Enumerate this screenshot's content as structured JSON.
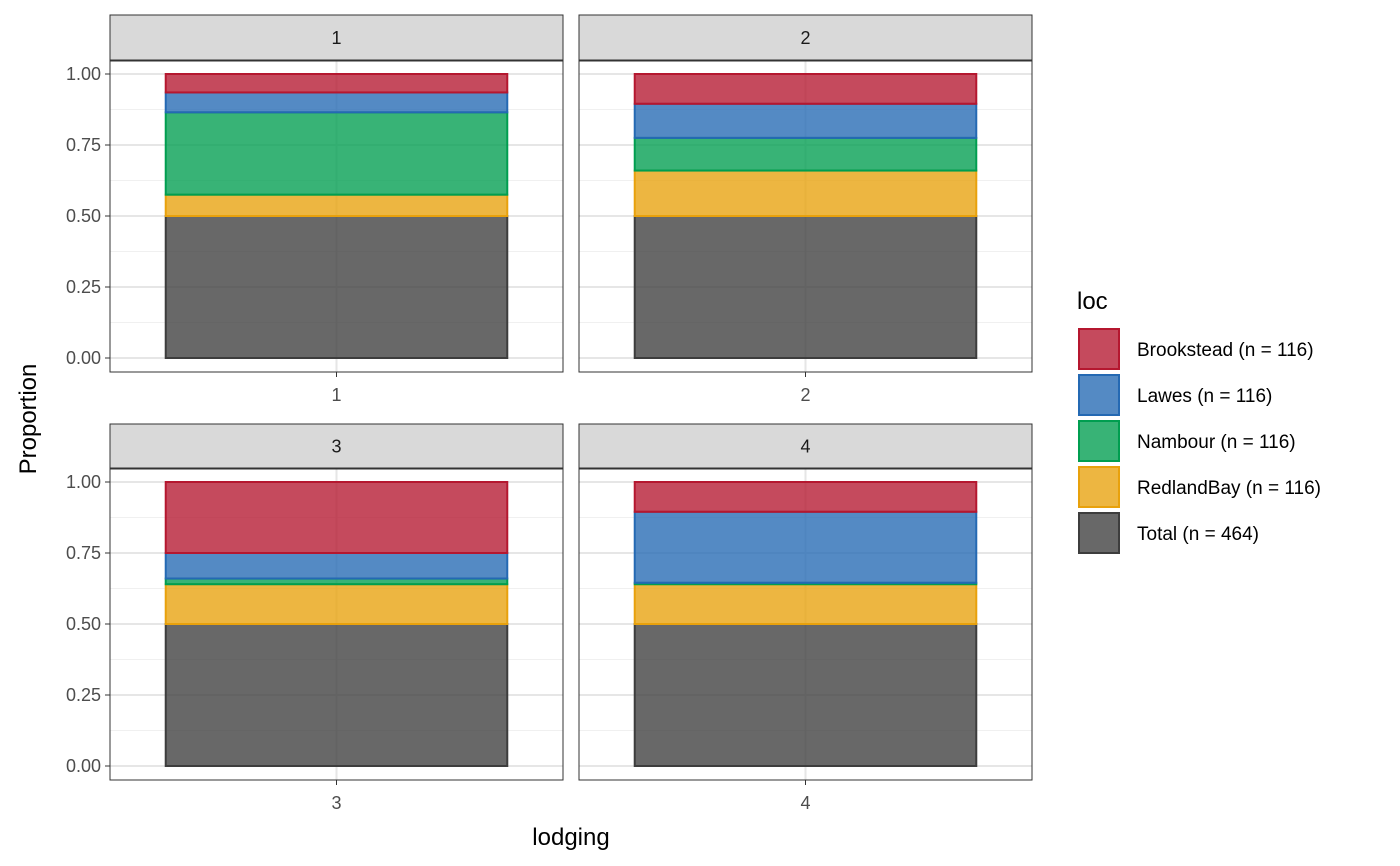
{
  "chart_data": {
    "type": "bar",
    "stacked": true,
    "facet_variable": "lodging",
    "xlabel": "lodging",
    "ylabel": "Proportion",
    "ylim": [
      0,
      1
    ],
    "yticks": [
      "0.00",
      "0.25",
      "0.50",
      "0.75",
      "1.00"
    ],
    "grid": true,
    "legend": {
      "title": "loc",
      "position": "right",
      "entries": [
        {
          "label": "Brookstead (n = 116)",
          "color": "#b5172f"
        },
        {
          "label": "Lawes (n = 116)",
          "color": "#2469b3"
        },
        {
          "label": "Nambour (n = 116)",
          "color": "#009e50"
        },
        {
          "label": "RedlandBay (n = 116)",
          "color": "#e8a10c"
        },
        {
          "label": "Total (n = 464)",
          "color": "#3d3d3d"
        }
      ]
    },
    "stack_order": [
      "Total (n = 464)",
      "RedlandBay (n = 116)",
      "Nambour (n = 116)",
      "Lawes (n = 116)",
      "Brookstead (n = 116)"
    ],
    "facets": [
      {
        "strip": "1",
        "category": "1",
        "values": {
          "Total (n = 464)": 0.5,
          "RedlandBay (n = 116)": 0.075,
          "Nambour (n = 116)": 0.29,
          "Lawes (n = 116)": 0.07,
          "Brookstead (n = 116)": 0.065
        }
      },
      {
        "strip": "2",
        "category": "2",
        "values": {
          "Total (n = 464)": 0.5,
          "RedlandBay (n = 116)": 0.16,
          "Nambour (n = 116)": 0.115,
          "Lawes (n = 116)": 0.12,
          "Brookstead (n = 116)": 0.105
        }
      },
      {
        "strip": "3",
        "category": "3",
        "values": {
          "Total (n = 464)": 0.5,
          "RedlandBay (n = 116)": 0.14,
          "Nambour (n = 116)": 0.02,
          "Lawes (n = 116)": 0.09,
          "Brookstead (n = 116)": 0.25
        }
      },
      {
        "strip": "4",
        "category": "4",
        "values": {
          "Total (n = 464)": 0.5,
          "RedlandBay (n = 116)": 0.14,
          "Nambour (n = 116)": 0.005,
          "Lawes (n = 116)": 0.25,
          "Brookstead (n = 116)": 0.105
        }
      }
    ]
  }
}
